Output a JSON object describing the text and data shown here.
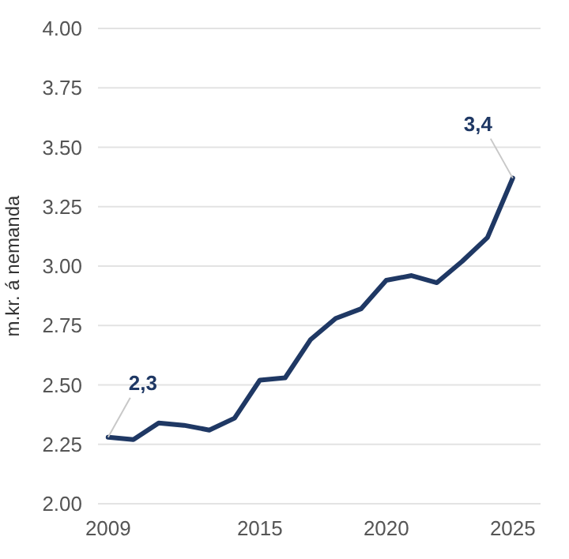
{
  "chart_data": {
    "type": "line",
    "ylabel": "m.kr. á nemanda",
    "x": [
      2009,
      2010,
      2011,
      2012,
      2013,
      2014,
      2015,
      2016,
      2017,
      2018,
      2019,
      2020,
      2021,
      2022,
      2023,
      2024,
      2025
    ],
    "series": [
      {
        "color": "#1f3864",
        "values": [
          2.28,
          2.27,
          2.34,
          2.33,
          2.31,
          2.36,
          2.52,
          2.53,
          2.69,
          2.78,
          2.82,
          2.94,
          2.96,
          2.93,
          3.02,
          3.12,
          3.37
        ]
      }
    ],
    "xlim": [
      2008.6,
      2026.1
    ],
    "xticks": [
      2009,
      2015,
      2020,
      2025
    ],
    "ylim": [
      2,
      4
    ],
    "yticks": [
      {
        "value": 2,
        "label": "2.00"
      },
      {
        "value": 2.25,
        "label": "2.25"
      },
      {
        "value": 2.5,
        "label": "2.50"
      },
      {
        "value": 2.75,
        "label": "2.75"
      },
      {
        "value": 3,
        "label": "3.00"
      },
      {
        "value": 3.25,
        "label": "3.25"
      },
      {
        "value": 3.5,
        "label": "3.50"
      },
      {
        "value": 3.75,
        "label": "3.75"
      },
      {
        "value": 4,
        "label": "4.00"
      }
    ],
    "grid": "y",
    "line_style": "solid",
    "marker": "none",
    "annotations": [
      {
        "text": "2,3",
        "x": 2009,
        "y": 2.28
      },
      {
        "text": "3,4",
        "x": 2025,
        "y": 3.37
      }
    ]
  }
}
